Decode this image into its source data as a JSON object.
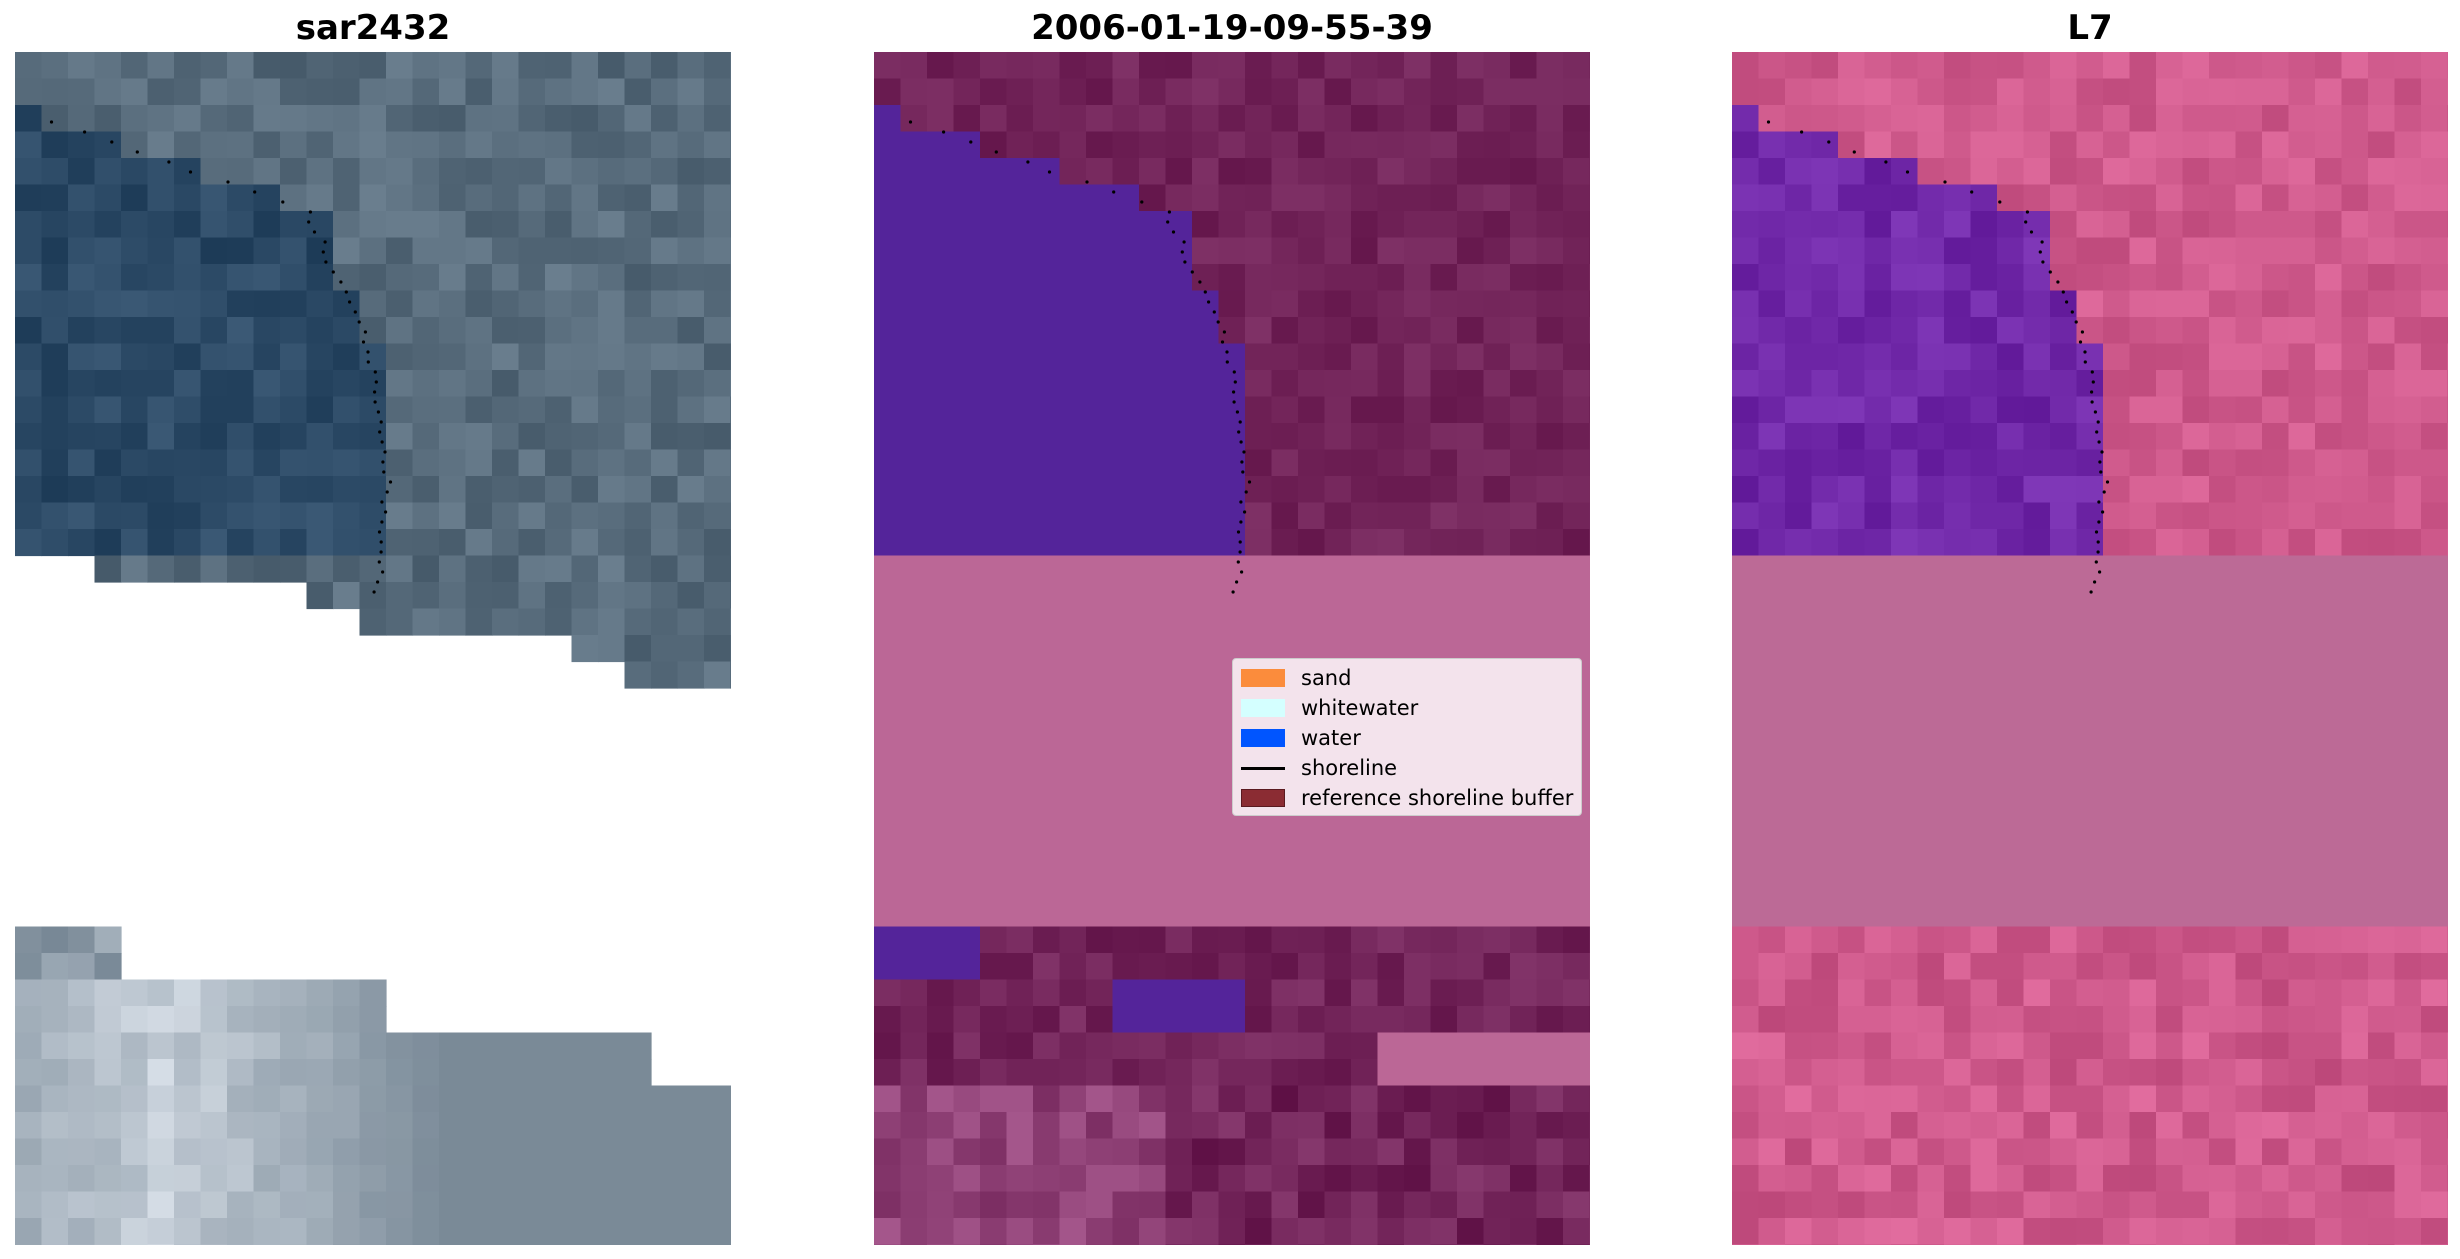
{
  "panels": [
    {
      "title": "sar2432"
    },
    {
      "title": "2006-01-19-09-55-39"
    },
    {
      "title": "L7"
    }
  ],
  "legend": {
    "items": [
      {
        "label": "sand",
        "color": "#fb8c3c",
        "kind": "patch"
      },
      {
        "label": "whitewater",
        "color": "#d4ffff",
        "kind": "patch"
      },
      {
        "label": "water",
        "color": "#0055ff",
        "kind": "patch"
      },
      {
        "label": "shoreline",
        "color": "#000000",
        "kind": "line"
      },
      {
        "label": "reference shoreline buffer",
        "color": "#8b2c33",
        "kind": "patch"
      }
    ]
  },
  "colors": {
    "rgb_water": "#2c4a66",
    "rgb_land": "#4e6272",
    "rgb_bright": "#dfe6ee",
    "class_water": "#54249a",
    "class_land": "#722459",
    "class_sand": "#bb6796",
    "l7_water": "#7028a8",
    "l7_land": "#cf5a8c",
    "l7_sand": "#bc6a96"
  }
}
